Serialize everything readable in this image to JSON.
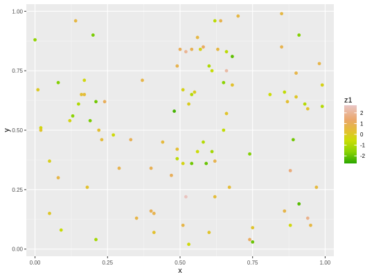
{
  "chart_data": {
    "type": "scatter",
    "title": "",
    "xlabel": "x",
    "ylabel": "y",
    "xlim": [
      -0.03,
      1.03
    ],
    "ylim": [
      -0.03,
      1.03
    ],
    "xticks": [
      0.0,
      0.25,
      0.5,
      0.75,
      1.0
    ],
    "xtick_labels": [
      "0.00",
      "0.25",
      "0.50",
      "0.75",
      "1.00"
    ],
    "yticks": [
      0.0,
      0.25,
      0.5,
      0.75,
      1.0
    ],
    "ytick_labels": [
      "0.00",
      "0.25",
      "0.50",
      "0.75",
      "1.00"
    ],
    "grid": true,
    "legend": {
      "title": "z1",
      "placement": "right",
      "min": -2.7,
      "max": 2.7,
      "ticks": [
        2,
        1,
        0,
        -1,
        -2
      ],
      "tick_labels": [
        "2",
        "1",
        "0",
        "-1",
        "-2"
      ],
      "gradient": [
        "#e9c6c6",
        "#eaa66b",
        "#e3c030",
        "#cbdd06",
        "#8ad303",
        "#2aa600"
      ]
    },
    "colors": {
      "panel_background": "#ebebeb",
      "grid_major": "#ffffff",
      "grid_minor": "#f5f5f5"
    },
    "points": [
      {
        "x": 0.0,
        "y": 0.88,
        "z": -1.5
      },
      {
        "x": 0.01,
        "y": 0.67,
        "z": 0.2
      },
      {
        "x": 0.02,
        "y": 0.51,
        "z": -0.3
      },
      {
        "x": 0.02,
        "y": 0.5,
        "z": 0.4
      },
      {
        "x": 0.05,
        "y": 0.37,
        "z": 0.0
      },
      {
        "x": 0.05,
        "y": 0.15,
        "z": 0.3
      },
      {
        "x": 0.08,
        "y": 0.7,
        "z": -1.7
      },
      {
        "x": 0.08,
        "y": 0.3,
        "z": 1.0
      },
      {
        "x": 0.09,
        "y": 0.08,
        "z": -0.6
      },
      {
        "x": 0.12,
        "y": 0.54,
        "z": -0.2
      },
      {
        "x": 0.13,
        "y": 0.56,
        "z": -1.6
      },
      {
        "x": 0.14,
        "y": 0.96,
        "z": 0.9
      },
      {
        "x": 0.15,
        "y": 0.61,
        "z": -1.0
      },
      {
        "x": 0.16,
        "y": 0.65,
        "z": 0.6
      },
      {
        "x": 0.17,
        "y": 0.71,
        "z": -0.3
      },
      {
        "x": 0.17,
        "y": 0.65,
        "z": 0.7
      },
      {
        "x": 0.18,
        "y": 0.26,
        "z": 0.5
      },
      {
        "x": 0.19,
        "y": 0.54,
        "z": -1.8
      },
      {
        "x": 0.2,
        "y": 0.9,
        "z": -1.8
      },
      {
        "x": 0.21,
        "y": 0.62,
        "z": -1.9
      },
      {
        "x": 0.21,
        "y": 0.04,
        "z": -1.2
      },
      {
        "x": 0.22,
        "y": 0.5,
        "z": 0.6
      },
      {
        "x": 0.23,
        "y": 0.46,
        "z": 0.7
      },
      {
        "x": 0.24,
        "y": 0.62,
        "z": 1.3
      },
      {
        "x": 0.27,
        "y": 0.48,
        "z": -0.4
      },
      {
        "x": 0.29,
        "y": 0.34,
        "z": 1.1
      },
      {
        "x": 0.33,
        "y": 0.46,
        "z": 1.2
      },
      {
        "x": 0.35,
        "y": 0.13,
        "z": 1.0
      },
      {
        "x": 0.37,
        "y": 0.71,
        "z": 1.0
      },
      {
        "x": 0.4,
        "y": 0.34,
        "z": 1.2
      },
      {
        "x": 0.4,
        "y": 0.16,
        "z": 1.2
      },
      {
        "x": 0.41,
        "y": 0.15,
        "z": 1.1
      },
      {
        "x": 0.41,
        "y": 0.07,
        "z": 0.5
      },
      {
        "x": 0.44,
        "y": 0.45,
        "z": 0.8
      },
      {
        "x": 0.47,
        "y": 0.31,
        "z": 1.3
      },
      {
        "x": 0.48,
        "y": 0.58,
        "z": -2.4
      },
      {
        "x": 0.49,
        "y": 0.77,
        "z": 1.1
      },
      {
        "x": 0.49,
        "y": 0.42,
        "z": 0.6
      },
      {
        "x": 0.49,
        "y": 0.38,
        "z": -0.8
      },
      {
        "x": 0.5,
        "y": 0.84,
        "z": 1.3
      },
      {
        "x": 0.51,
        "y": 0.67,
        "z": -0.1
      },
      {
        "x": 0.51,
        "y": 0.36,
        "z": -0.2
      },
      {
        "x": 0.51,
        "y": 0.1,
        "z": 1.0
      },
      {
        "x": 0.52,
        "y": 0.83,
        "z": 2.1
      },
      {
        "x": 0.52,
        "y": 0.22,
        "z": 2.6
      },
      {
        "x": 0.53,
        "y": 0.61,
        "z": 0.1
      },
      {
        "x": 0.53,
        "y": 0.02,
        "z": -0.4
      },
      {
        "x": 0.54,
        "y": 0.84,
        "z": 1.2
      },
      {
        "x": 0.54,
        "y": 0.65,
        "z": -0.9
      },
      {
        "x": 0.54,
        "y": 0.36,
        "z": -1.9
      },
      {
        "x": 0.55,
        "y": 0.66,
        "z": 0.1
      },
      {
        "x": 0.56,
        "y": 0.89,
        "z": 0.9
      },
      {
        "x": 0.56,
        "y": 0.41,
        "z": -0.5
      },
      {
        "x": 0.57,
        "y": 0.84,
        "z": -0.1
      },
      {
        "x": 0.58,
        "y": 0.85,
        "z": 1.4
      },
      {
        "x": 0.58,
        "y": 0.45,
        "z": -0.9
      },
      {
        "x": 0.59,
        "y": 0.36,
        "z": -2.0
      },
      {
        "x": 0.6,
        "y": 0.77,
        "z": -1.0
      },
      {
        "x": 0.6,
        "y": 0.07,
        "z": 0.4
      },
      {
        "x": 0.61,
        "y": 0.75,
        "z": -0.6
      },
      {
        "x": 0.61,
        "y": 0.41,
        "z": -1.2
      },
      {
        "x": 0.62,
        "y": 0.96,
        "z": -0.8
      },
      {
        "x": 0.62,
        "y": 0.37,
        "z": 1.1
      },
      {
        "x": 0.62,
        "y": 0.22,
        "z": 0.7
      },
      {
        "x": 0.63,
        "y": 0.84,
        "z": 0.9
      },
      {
        "x": 0.64,
        "y": 0.96,
        "z": 1.1
      },
      {
        "x": 0.65,
        "y": 0.7,
        "z": -1.6
      },
      {
        "x": 0.65,
        "y": 0.5,
        "z": -0.7
      },
      {
        "x": 0.66,
        "y": 0.83,
        "z": -0.8
      },
      {
        "x": 0.66,
        "y": 0.75,
        "z": 2.3
      },
      {
        "x": 0.66,
        "y": 0.57,
        "z": 0.4
      },
      {
        "x": 0.67,
        "y": 0.26,
        "z": 0.7
      },
      {
        "x": 0.68,
        "y": 0.81,
        "z": -2.1
      },
      {
        "x": 0.68,
        "y": 0.69,
        "z": 0.5
      },
      {
        "x": 0.7,
        "y": 0.98,
        "z": 0.9
      },
      {
        "x": 0.74,
        "y": 0.4,
        "z": -1.7
      },
      {
        "x": 0.74,
        "y": 0.04,
        "z": 1.4
      },
      {
        "x": 0.75,
        "y": 0.09,
        "z": 0.4
      },
      {
        "x": 0.75,
        "y": 0.03,
        "z": -2.0
      },
      {
        "x": 0.81,
        "y": 0.65,
        "z": -0.5
      },
      {
        "x": 0.85,
        "y": 0.99,
        "z": 0.9
      },
      {
        "x": 0.85,
        "y": 0.85,
        "z": 1.1
      },
      {
        "x": 0.86,
        "y": 0.66,
        "z": -0.7
      },
      {
        "x": 0.86,
        "y": 0.16,
        "z": 1.0
      },
      {
        "x": 0.87,
        "y": 0.62,
        "z": 0.6
      },
      {
        "x": 0.88,
        "y": 0.33,
        "z": 1.8
      },
      {
        "x": 0.88,
        "y": 0.1,
        "z": -0.3
      },
      {
        "x": 0.89,
        "y": 0.46,
        "z": -1.9
      },
      {
        "x": 0.9,
        "y": 0.74,
        "z": 1.0
      },
      {
        "x": 0.9,
        "y": 0.64,
        "z": 0.3
      },
      {
        "x": 0.91,
        "y": 0.9,
        "z": -1.7
      },
      {
        "x": 0.91,
        "y": 0.19,
        "z": -2.2
      },
      {
        "x": 0.93,
        "y": 0.61,
        "z": -0.9
      },
      {
        "x": 0.94,
        "y": 0.59,
        "z": 0.5
      },
      {
        "x": 0.94,
        "y": 0.13,
        "z": 2.0
      },
      {
        "x": 0.95,
        "y": 0.1,
        "z": 0.9
      },
      {
        "x": 0.97,
        "y": 0.26,
        "z": 0.8
      },
      {
        "x": 0.98,
        "y": 0.78,
        "z": 1.0
      },
      {
        "x": 0.99,
        "y": 0.69,
        "z": -0.1
      },
      {
        "x": 0.99,
        "y": 0.6,
        "z": -0.9
      }
    ]
  }
}
